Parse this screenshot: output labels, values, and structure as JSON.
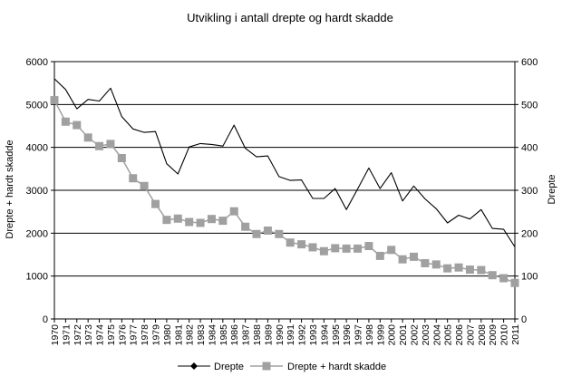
{
  "chart_data": {
    "type": "line",
    "title": "Utvikling i antall drepte og hardt skadde",
    "ylabel_left": "Drepte + hardt skadde",
    "ylabel_right": "Drepte",
    "ylim_left": [
      0,
      6000
    ],
    "ylim_right": [
      0,
      600
    ],
    "yticks_left": [
      "0",
      "1000",
      "2000",
      "3000",
      "4000",
      "5000",
      "6000"
    ],
    "yticks_right": [
      "0",
      "100",
      "200",
      "300",
      "400",
      "500",
      "600"
    ],
    "x": [
      "1970",
      "1971",
      "1972",
      "1973",
      "1974",
      "1975",
      "1976",
      "1977",
      "1978",
      "1979",
      "1980",
      "1981",
      "1982",
      "1983",
      "1984",
      "1985",
      "1986",
      "1987",
      "1988",
      "1989",
      "1990",
      "1991",
      "1992",
      "1993",
      "1994",
      "1995",
      "1996",
      "1997",
      "1998",
      "1999",
      "2000",
      "2001",
      "2002",
      "2003",
      "2004",
      "2005",
      "2006",
      "2007",
      "2008",
      "2009",
      "2010",
      "2011"
    ],
    "series": [
      {
        "name": "Drepte",
        "axis": "right",
        "color": "#000000",
        "marker": "none",
        "values": [
          560,
          535,
          490,
          512,
          508,
          538,
          472,
          443,
          435,
          437,
          362,
          338,
          401,
          409,
          407,
          403,
          452,
          398,
          378,
          380,
          332,
          323,
          324,
          281,
          281,
          304,
          255,
          303,
          352,
          304,
          341,
          275,
          310,
          280,
          257,
          224,
          242,
          233,
          255,
          211,
          209,
          168
        ]
      },
      {
        "name": "Drepte + hardt skadde",
        "axis": "left",
        "color": "#a0a0a0",
        "marker": "square",
        "values": [
          5100,
          4600,
          4520,
          4230,
          4030,
          4080,
          3750,
          3280,
          3100,
          2680,
          2310,
          2340,
          2260,
          2240,
          2330,
          2290,
          2510,
          2150,
          1980,
          2060,
          1980,
          1780,
          1740,
          1670,
          1580,
          1650,
          1640,
          1640,
          1700,
          1470,
          1610,
          1390,
          1450,
          1300,
          1270,
          1180,
          1200,
          1150,
          1140,
          1020,
          950,
          840
        ]
      }
    ],
    "legend": [
      "Drepte",
      "Drepte + hardt skadde"
    ],
    "legend_position": "bottom",
    "grid": "horizontal"
  }
}
